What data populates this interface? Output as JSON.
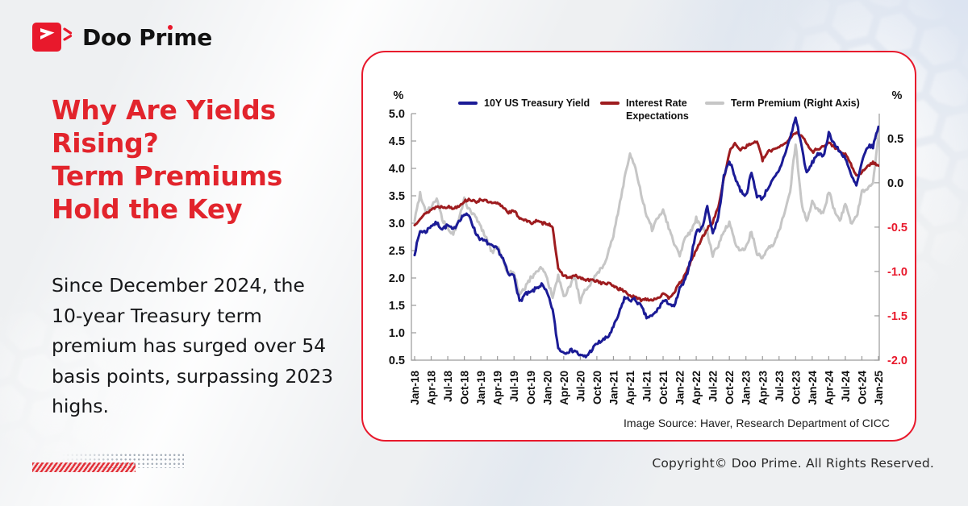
{
  "brand": {
    "name_prefix": "Doo Pr",
    "name_i": "ı",
    "name_suffix": "me"
  },
  "headline": "Why Are Yields\nRising?\nTerm Premiums\nHold the Key",
  "body_text": "Since December 2024, the\n10-year Treasury term\npremium has surged over 54\nbasis points, surpassing 2023\nhighs.",
  "footer": {
    "copyright": "Copyright© Doo Prime. All Rights Reserved."
  },
  "colors": {
    "accent_red": "#e8192c",
    "headline_red": "#e2242c",
    "axis_gray": "#9a9a9a"
  },
  "chart_data": {
    "type": "line",
    "source_note": "Image Source: Haver, Research Department of CICC",
    "left_axis": {
      "unit": "%",
      "min": 0.5,
      "max": 5.0,
      "ticks": [
        5.0,
        4.5,
        4.0,
        3.5,
        3.0,
        2.5,
        2.0,
        1.5,
        1.0,
        0.5
      ]
    },
    "right_axis": {
      "unit": "%",
      "min": -2.0,
      "max": 0.78,
      "ticks": [
        0.5,
        0.0,
        -0.5,
        -1.0,
        -1.5,
        -2.0
      ],
      "negative_tick_color": "#e8192c"
    },
    "x_labels": [
      "Jan-18",
      "Apr-18",
      "Jul-18",
      "Oct-18",
      "Jan-19",
      "Apr-19",
      "Jul-19",
      "Oct-19",
      "Jan-20",
      "Apr-20",
      "Jul-20",
      "Oct-20",
      "Jan-21",
      "Apr-21",
      "Jul-21",
      "Oct-21",
      "Jan-22",
      "Apr-22",
      "Jul-22",
      "Oct-22",
      "Jan-23",
      "Apr-23",
      "Jul-23",
      "Oct-23",
      "Jan-24",
      "Apr-24",
      "Jul-24",
      "Oct-24",
      "Jan-25"
    ],
    "x_label_interval_months": 3,
    "grid": false,
    "legend_position": "top",
    "series": [
      {
        "name": "10Y US Treasury Yield",
        "axis": "left",
        "color": "#1b1b96",
        "values": [
          2.45,
          2.86,
          2.84,
          2.96,
          3.0,
          2.9,
          2.96,
          2.87,
          3.05,
          3.16,
          3.12,
          2.83,
          2.7,
          2.66,
          2.57,
          2.53,
          2.35,
          2.05,
          2.06,
          1.56,
          1.7,
          1.73,
          1.81,
          1.88,
          1.72,
          1.42,
          0.72,
          0.64,
          0.67,
          0.68,
          0.58,
          0.56,
          0.68,
          0.8,
          0.86,
          0.92,
          1.1,
          1.34,
          1.64,
          1.6,
          1.6,
          1.48,
          1.28,
          1.3,
          1.42,
          1.58,
          1.55,
          1.46,
          1.8,
          1.95,
          2.35,
          2.85,
          2.9,
          3.3,
          2.82,
          3.1,
          3.85,
          4.15,
          3.85,
          3.6,
          3.5,
          3.92,
          3.5,
          3.45,
          3.65,
          3.8,
          3.95,
          4.25,
          4.55,
          4.93,
          4.45,
          3.9,
          4.1,
          4.28,
          4.2,
          4.65,
          4.45,
          4.3,
          4.2,
          3.88,
          3.68,
          4.1,
          4.4,
          4.4,
          4.76
        ]
      },
      {
        "name": "Interest Rate Expectations",
        "axis": "left",
        "color": "#9e1c1f",
        "values": [
          2.96,
          3.1,
          3.17,
          3.25,
          3.3,
          3.3,
          3.3,
          3.27,
          3.32,
          3.4,
          3.44,
          3.38,
          3.44,
          3.4,
          3.36,
          3.36,
          3.3,
          3.2,
          3.22,
          3.1,
          3.06,
          3.0,
          3.04,
          3.0,
          3.0,
          2.94,
          2.15,
          2.05,
          2.0,
          2.04,
          2.0,
          1.96,
          1.96,
          1.95,
          1.9,
          1.9,
          1.86,
          1.8,
          1.76,
          1.68,
          1.64,
          1.6,
          1.62,
          1.6,
          1.64,
          1.7,
          1.64,
          1.74,
          1.9,
          2.05,
          2.3,
          2.5,
          2.72,
          2.9,
          3.02,
          3.3,
          3.8,
          4.3,
          4.45,
          4.35,
          4.4,
          4.45,
          4.5,
          4.15,
          4.3,
          4.35,
          4.4,
          4.45,
          4.55,
          4.65,
          4.62,
          4.45,
          4.3,
          4.36,
          4.4,
          4.46,
          4.4,
          4.3,
          4.25,
          4.08,
          3.86,
          3.92,
          4.05,
          4.1,
          4.05
        ]
      },
      {
        "name": "Term Premium (Right Axis)",
        "axis": "right",
        "color": "#c6c6c6",
        "values": [
          -0.42,
          -0.12,
          -0.32,
          -0.27,
          -0.18,
          -0.42,
          -0.52,
          -0.58,
          -0.42,
          -0.18,
          -0.32,
          -0.38,
          -0.5,
          -0.62,
          -0.78,
          -0.72,
          -0.88,
          -1.02,
          -1.0,
          -1.28,
          -1.18,
          -1.08,
          -1.0,
          -0.95,
          -1.08,
          -1.3,
          -1.05,
          -1.3,
          -1.18,
          -1.05,
          -1.35,
          -1.2,
          -1.12,
          -1.02,
          -0.95,
          -0.8,
          -0.6,
          -0.28,
          0.05,
          0.33,
          0.15,
          -0.12,
          -0.38,
          -0.52,
          -0.4,
          -0.3,
          -0.5,
          -0.68,
          -0.82,
          -0.6,
          -0.55,
          -0.4,
          -0.52,
          -0.56,
          -0.82,
          -0.7,
          -0.55,
          -0.45,
          -0.68,
          -0.78,
          -0.72,
          -0.55,
          -0.8,
          -0.85,
          -0.75,
          -0.7,
          -0.55,
          -0.32,
          -0.1,
          0.45,
          -0.2,
          -0.45,
          -0.22,
          -0.3,
          -0.36,
          -0.1,
          -0.3,
          -0.42,
          -0.25,
          -0.45,
          -0.4,
          -0.1,
          -0.05,
          0.0,
          0.55
        ]
      }
    ]
  }
}
